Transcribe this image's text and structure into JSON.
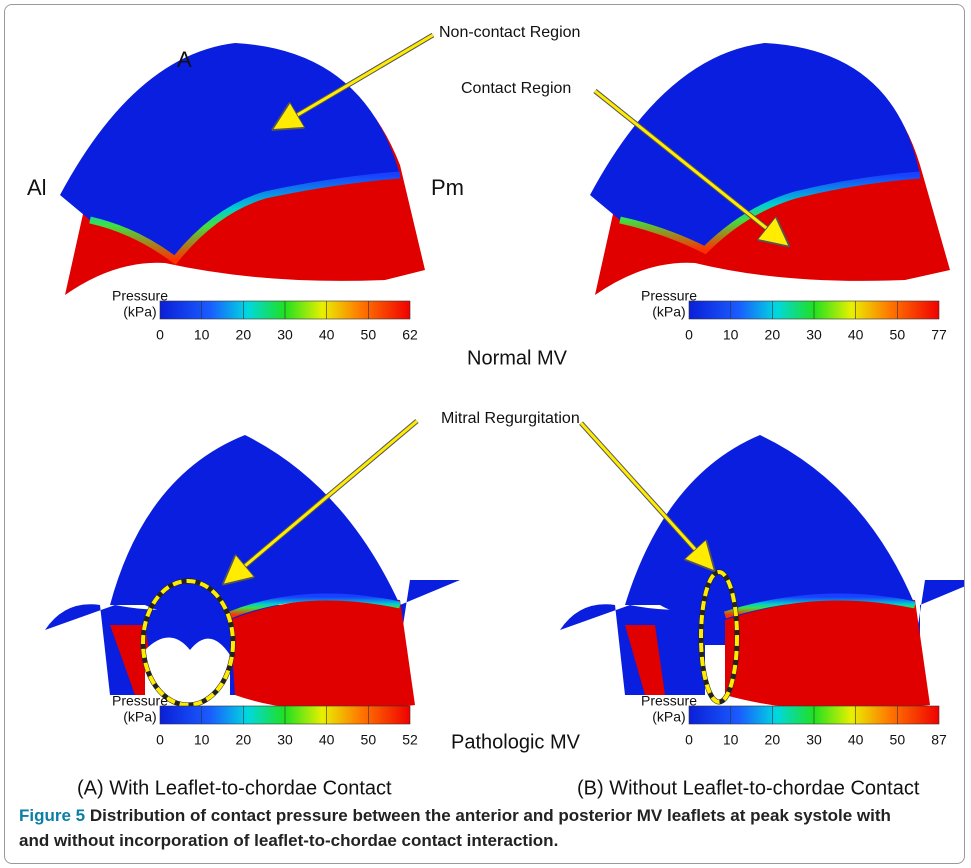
{
  "figure": {
    "annotations": {
      "non_contact": "Non-contact Region",
      "contact": "Contact Region",
      "anterior": "A",
      "al": "Al",
      "pm": "Pm",
      "regurgitation": "Mitral Regurgitation"
    },
    "colorbars": [
      {
        "label": [
          "Pressure",
          "(kPa)"
        ],
        "ticks": [
          0,
          10,
          20,
          30,
          40,
          50,
          62
        ]
      },
      {
        "label": [
          "Pressure",
          "(kPa)"
        ],
        "ticks": [
          0,
          10,
          20,
          30,
          40,
          50,
          77
        ]
      },
      {
        "label": [
          "Pressure",
          "(kPa)"
        ],
        "ticks": [
          0,
          10,
          20,
          30,
          40,
          50,
          52
        ]
      },
      {
        "label": [
          "Pressure",
          "(kPa)"
        ],
        "ticks": [
          0,
          10,
          20,
          30,
          40,
          50,
          87
        ]
      }
    ],
    "row_labels": [
      "Normal MV",
      "Pathologic MV"
    ],
    "column_labels": [
      "(A) With Leaflet-to-chordae Contact",
      "(B) Without Leaflet-to-chordae Contact"
    ],
    "caption": {
      "label": "Figure 5",
      "text": "Distribution of contact pressure between the anterior and posterior MV leaflets at peak systole with and without incorporation of leaflet-to-chordae contact interaction."
    }
  }
}
